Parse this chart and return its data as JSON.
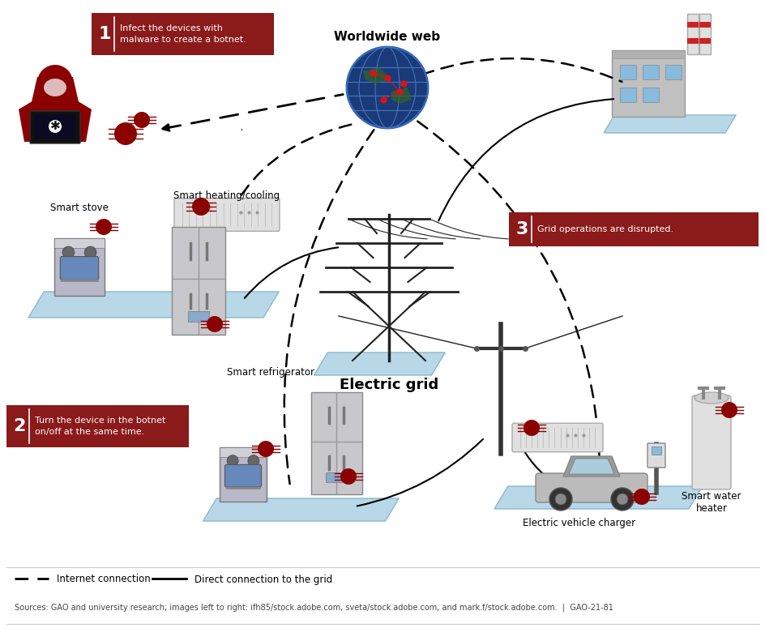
{
  "bg_color": "#ffffff",
  "step1_text": "Infect the devices with\nmalware to create a botnet.",
  "step2_text": "Turn the device in the botnet\non/off at the same time.",
  "step3_text": "Grid operations are disrupted.",
  "step_box_color": "#8b1a1a",
  "worldwide_web_label": "Worldwide web",
  "electric_grid_label": "Electric grid",
  "smart_stove_label": "Smart stove",
  "smart_heating_label": "Smart heating/cooling",
  "smart_fridge_label": "Smart refrigerator",
  "ev_label": "Electric vehicle charger",
  "water_heater_label": "Smart water\nheater",
  "legend_internet": "Internet connection",
  "legend_direct": "Direct connection to the grid",
  "source_text": "Sources: GAO and university research; images left to right: ifh85/stock.adobe.com, sveta/stock.adobe.com, and mark.f/stock.adobe.com.  |  GAO-21-81",
  "iso_color": "#b8d8e8",
  "iso_edge": "#8ab8d0",
  "appliance_color": "#cccccc",
  "appliance_edge": "#888888",
  "bug_color": "#8b0000",
  "globe_color": "#1a4a8a",
  "globe_line_color": "#4477bb",
  "dot_color": "#cc0000"
}
